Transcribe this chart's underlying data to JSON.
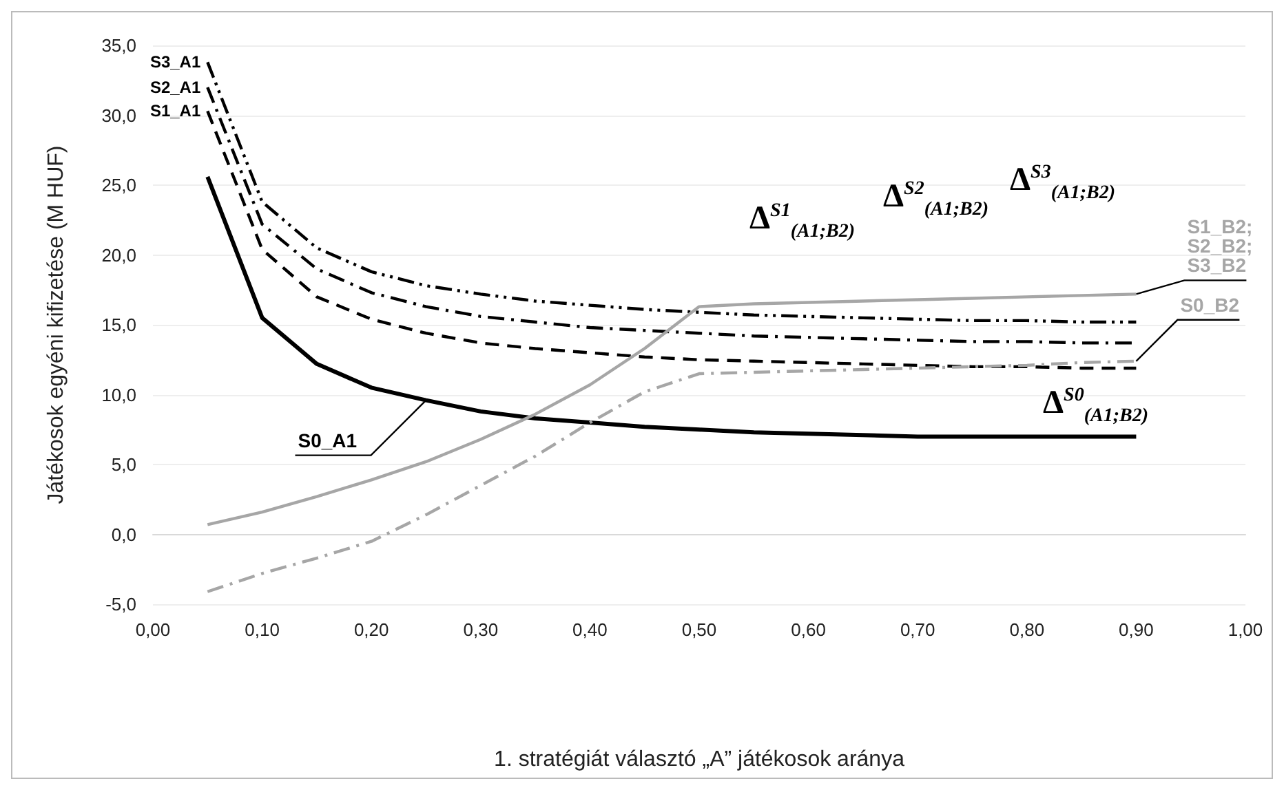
{
  "chart_data": {
    "type": "line",
    "xlabel": "1. stratégiát választó „A” játékosok aránya",
    "ylabel": "Játékosok egyéni kifizetése (M HUF)",
    "x": [
      0.05,
      0.1,
      0.15,
      0.2,
      0.25,
      0.3,
      0.35,
      0.4,
      0.45,
      0.5,
      0.55,
      0.6,
      0.65,
      0.7,
      0.75,
      0.8,
      0.85,
      0.9
    ],
    "series": [
      {
        "name": "S0_A1",
        "color": "#000000",
        "line_style": "solid",
        "values": [
          25.6,
          15.5,
          12.2,
          10.5,
          9.6,
          8.8,
          8.3,
          8.0,
          7.7,
          7.5,
          7.3,
          7.2,
          7.1,
          7.0,
          7.0,
          7.0,
          7.0,
          7.0
        ]
      },
      {
        "name": "S1_A1",
        "color": "#000000",
        "line_style": "dashed",
        "values": [
          30.3,
          20.4,
          17.0,
          15.4,
          14.4,
          13.7,
          13.3,
          13.0,
          12.7,
          12.5,
          12.4,
          12.3,
          12.2,
          12.1,
          12.0,
          12.0,
          11.9,
          11.9
        ]
      },
      {
        "name": "S2_A1",
        "color": "#000000",
        "line_style": "dashdot",
        "values": [
          32.0,
          22.2,
          19.0,
          17.3,
          16.3,
          15.6,
          15.2,
          14.8,
          14.6,
          14.4,
          14.2,
          14.1,
          14.0,
          13.9,
          13.8,
          13.8,
          13.7,
          13.7
        ]
      },
      {
        "name": "S3_A1",
        "color": "#000000",
        "line_style": "dashdotdot",
        "values": [
          33.8,
          23.8,
          20.5,
          18.8,
          17.8,
          17.2,
          16.7,
          16.4,
          16.1,
          15.9,
          15.7,
          15.6,
          15.5,
          15.4,
          15.3,
          15.3,
          15.2,
          15.2
        ]
      },
      {
        "name": "S1_B2; S2_B2; S3_B2",
        "color": "#a6a6a6",
        "line_style": "solid",
        "values": [
          0.7,
          1.6,
          2.7,
          3.9,
          5.2,
          6.8,
          8.6,
          10.7,
          13.3,
          16.3,
          16.5,
          16.6,
          16.7,
          16.8,
          16.9,
          17.0,
          17.1,
          17.2
        ]
      },
      {
        "name": "S0_B2",
        "color": "#a6a6a6",
        "line_style": "dashdot",
        "values": [
          -4.1,
          -2.8,
          -1.7,
          -0.5,
          1.4,
          3.5,
          5.6,
          8.0,
          10.2,
          11.5,
          11.6,
          11.7,
          11.8,
          11.9,
          12.0,
          12.1,
          12.3,
          12.4
        ]
      }
    ],
    "xlim": [
      0,
      1
    ],
    "xticks": [
      {
        "value": 0,
        "label": "0,00"
      },
      {
        "value": 0.1,
        "label": "0,10"
      },
      {
        "value": 0.2,
        "label": "0,20"
      },
      {
        "value": 0.3,
        "label": "0,30"
      },
      {
        "value": 0.4,
        "label": "0,40"
      },
      {
        "value": 0.5,
        "label": "0,50"
      },
      {
        "value": 0.6,
        "label": "0,60"
      },
      {
        "value": 0.7,
        "label": "0,70"
      },
      {
        "value": 0.8,
        "label": "0,80"
      },
      {
        "value": 0.9,
        "label": "0,90"
      },
      {
        "value": 1,
        "label": "1,00"
      }
    ],
    "ylim": [
      -5,
      35
    ],
    "yticks": [
      {
        "value": -5,
        "label": "-5,0"
      },
      {
        "value": 0,
        "label": "0,0"
      },
      {
        "value": 5,
        "label": "5,0"
      },
      {
        "value": 10,
        "label": "10,0"
      },
      {
        "value": 15,
        "label": "15,0"
      },
      {
        "value": 20,
        "label": "20,0"
      },
      {
        "value": 25,
        "label": "25,0"
      },
      {
        "value": 30,
        "label": "30,0"
      },
      {
        "value": 35,
        "label": "35,0"
      }
    ],
    "annotations": [
      "Δ$^{S1}$$_{(A1;B2)}$",
      "Δ$^{S2}$$_{(A1;B2)}$",
      "Δ$^{S3}$$_{(A1;B2)}$",
      "Δ$^{S0}$$_{(A1;B2)}$"
    ],
    "grid": "y",
    "legend": false,
    "marker": "none"
  }
}
